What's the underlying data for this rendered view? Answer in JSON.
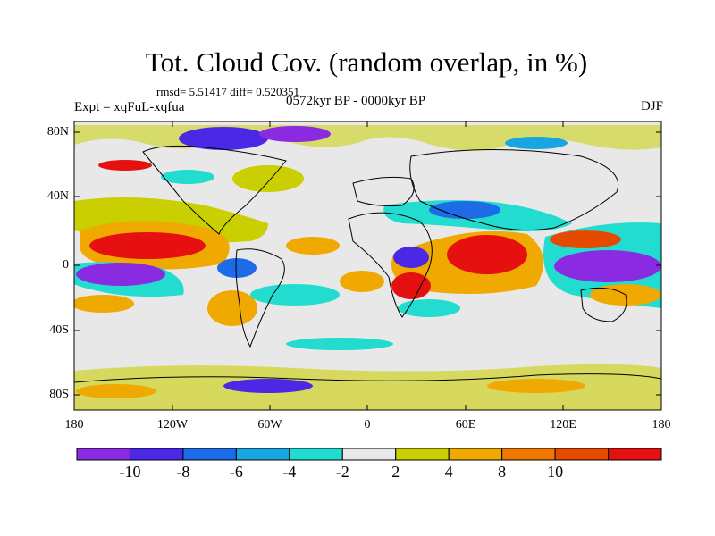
{
  "title": "Tot. Cloud Cov. (random overlap, in %)",
  "stats": "rmsd= 5.51417 diff= 0.520351",
  "experiment": "Expt = xqFuL-xqfua",
  "period": "0572kyr BP - 0000kyr BP",
  "season": "DJF",
  "map": {
    "lon_labels": [
      "180",
      "120W",
      "60W",
      "0",
      "60E",
      "120E",
      "180"
    ],
    "lat_labels": [
      "80N",
      "40N",
      "0",
      "40S",
      "80S"
    ]
  },
  "colorbar": {
    "labels": [
      "-10",
      "-8",
      "-6",
      "-4",
      "-2",
      "2",
      "4",
      "8",
      "10"
    ],
    "colors": [
      "#8a2be2",
      "#4b27e6",
      "#1e6be8",
      "#17a6e0",
      "#22dcd0",
      "#e8e8e8",
      "#c9cf00",
      "#efa900",
      "#f07800",
      "#e64a00",
      "#e61010"
    ]
  },
  "colors": {
    "land_outline": "#000000",
    "background": "#e8e8e8"
  }
}
